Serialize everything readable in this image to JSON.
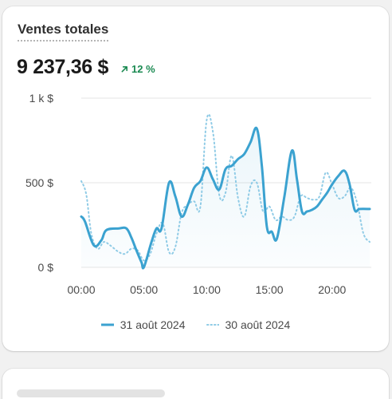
{
  "card": {
    "title": "Ventes totales",
    "total_value": "9 237,36 $",
    "delta_text": "12 %",
    "delta_icon": "arrow-up-right-icon",
    "delta_color": "#1b8a52"
  },
  "chart_data": {
    "type": "line",
    "title": "",
    "xlabel": "",
    "ylabel": "",
    "x_unit": "hour",
    "x_range": [
      0,
      23
    ],
    "ylim": [
      0,
      1000
    ],
    "y_ticks": [
      {
        "value": 0,
        "label": "0 $"
      },
      {
        "value": 500,
        "label": "500 $"
      },
      {
        "value": 1000,
        "label": "1 k $"
      }
    ],
    "x_ticks": [
      {
        "value": 0,
        "label": "00:00"
      },
      {
        "value": 5,
        "label": "05:00"
      },
      {
        "value": 10,
        "label": "10:00"
      },
      {
        "value": 15,
        "label": "15:00"
      },
      {
        "value": 20,
        "label": "20:00"
      }
    ],
    "grid": true,
    "legend_position": "bottom-center",
    "series": [
      {
        "name": "31 août 2024",
        "style": "solid",
        "color": "#3ba2d0",
        "x": [
          0,
          0.3,
          1,
          1.6,
          2,
          3,
          3.6,
          4,
          4.4,
          4.8,
          5,
          5.6,
          6,
          6.4,
          7,
          7.5,
          8,
          8.5,
          9,
          9.5,
          10,
          10.5,
          11,
          11.5,
          12,
          12.5,
          13,
          13.5,
          14,
          14.4,
          14.8,
          15.2,
          15.6,
          16.2,
          16.8,
          17.2,
          17.6,
          18,
          18.4,
          18.8,
          19.2,
          19.6,
          20,
          20.5,
          21,
          21.4,
          21.8,
          22.2,
          23
        ],
        "y": [
          300,
          270,
          130,
          160,
          220,
          230,
          230,
          175,
          100,
          30,
          2,
          150,
          230,
          230,
          500,
          420,
          300,
          370,
          470,
          510,
          590,
          520,
          460,
          580,
          600,
          640,
          670,
          740,
          820,
          600,
          240,
          210,
          170,
          420,
          690,
          520,
          330,
          330,
          340,
          360,
          400,
          440,
          490,
          540,
          570,
          490,
          340,
          345,
          345
        ]
      },
      {
        "name": "30 août 2024",
        "style": "dotted",
        "color": "#8fcbe6",
        "x": [
          0,
          0.4,
          0.8,
          1.3,
          1.8,
          2.3,
          3,
          3.5,
          4,
          4.5,
          5,
          5.5,
          6,
          6.5,
          7,
          7.5,
          8,
          8.5,
          9,
          9.5,
          10,
          10.5,
          11,
          11.5,
          12,
          12.5,
          13,
          13.5,
          14,
          14.5,
          15,
          15.5,
          16,
          16.5,
          17,
          17.5,
          18,
          18.5,
          19,
          19.5,
          20,
          20.5,
          21,
          21.5,
          22,
          22.5,
          23
        ],
        "y": [
          510,
          430,
          200,
          110,
          150,
          130,
          90,
          80,
          110,
          100,
          40,
          80,
          200,
          260,
          90,
          120,
          320,
          370,
          390,
          360,
          870,
          800,
          430,
          440,
          660,
          410,
          300,
          480,
          500,
          330,
          360,
          280,
          300,
          280,
          300,
          420,
          410,
          400,
          420,
          560,
          490,
          410,
          420,
          470,
          380,
          200,
          150
        ]
      }
    ]
  },
  "legend": {
    "current_label": "31 août 2024",
    "previous_label": "30 août 2024"
  }
}
